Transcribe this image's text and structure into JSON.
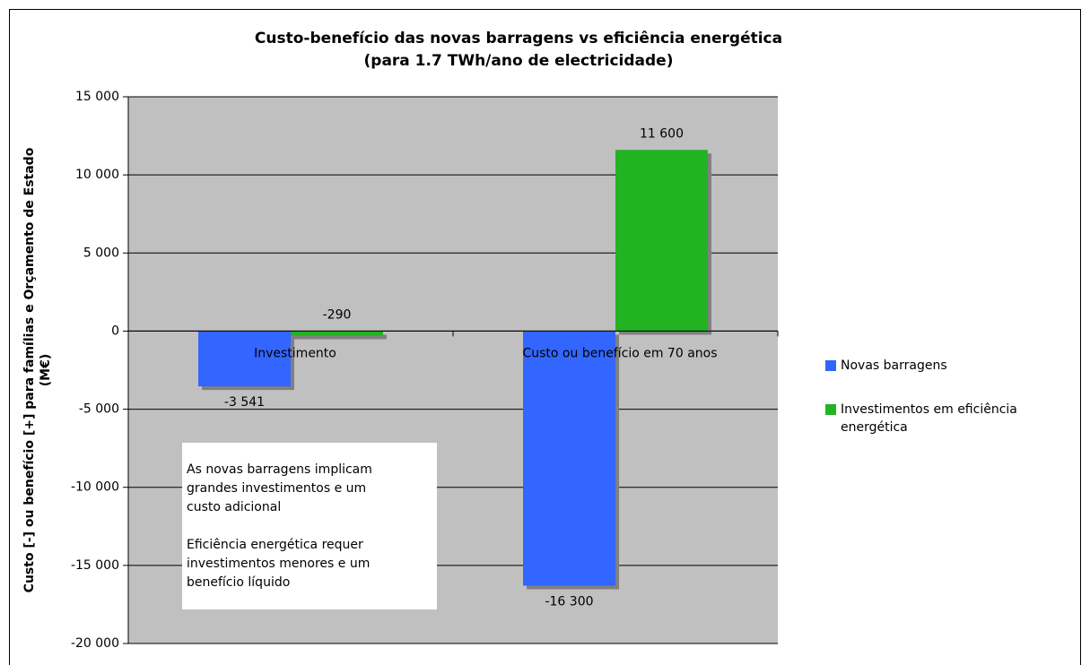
{
  "chart_data": {
    "type": "bar",
    "title": [
      "Custo-benefício das novas barragens vs eficiência energética",
      "(para 1.7 TWh/ano de electricidade)"
    ],
    "ylabel": [
      "Custo [-] ou benefício [+] para famílias e Orçamento de Estado",
      "(M€)"
    ],
    "categories": [
      "Investimento",
      "Custo ou benefício em 70 anos"
    ],
    "series": [
      {
        "name": "Novas barragens",
        "color": "#3366ff",
        "values": [
          -3541,
          -16300
        ],
        "value_labels": [
          "-3 541",
          "-16 300"
        ]
      },
      {
        "name": "Investimentos em eficiência energética",
        "color": "#22b322",
        "values": [
          -290,
          11600
        ],
        "value_labels": [
          "-290",
          "11 600"
        ]
      }
    ],
    "ylim": [
      -20000,
      15000
    ],
    "yticks": [
      {
        "value": 15000,
        "label": "15 000"
      },
      {
        "value": 10000,
        "label": "10 000"
      },
      {
        "value": 5000,
        "label": "5 000"
      },
      0,
      {
        "value": -5000,
        "label": "-5 000"
      },
      {
        "value": -10000,
        "label": "-10 000"
      },
      {
        "value": -15000,
        "label": "-15 000"
      },
      {
        "value": -20000,
        "label": "-20 000"
      }
    ],
    "grid": true,
    "plot_background": "#c0c0c0",
    "annotation": [
      [
        "As novas barragens implicam",
        "grandes investimentos e um",
        "custo adicional"
      ],
      [
        "Eficiência energética requer",
        "investimentos menores e um",
        "benefício líquido"
      ]
    ]
  }
}
